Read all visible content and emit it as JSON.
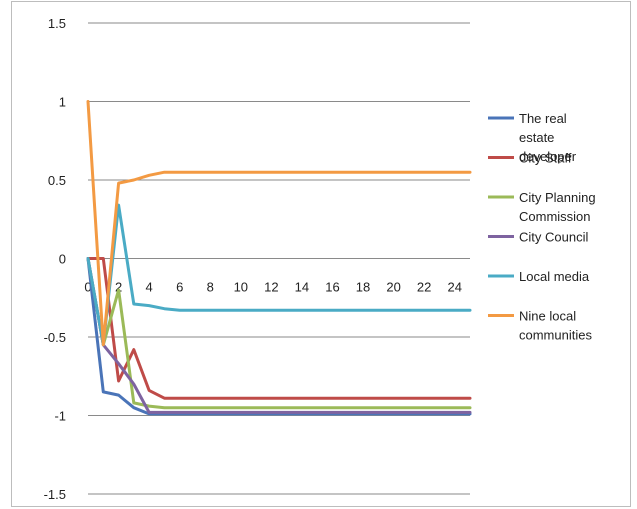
{
  "chart_data": {
    "type": "line",
    "x": [
      0,
      1,
      2,
      3,
      4,
      5,
      6,
      7,
      8,
      9,
      10,
      11,
      12,
      13,
      14,
      15,
      16,
      17,
      18,
      19,
      20,
      21,
      22,
      23,
      24,
      25
    ],
    "xlim": [
      0,
      25
    ],
    "ylim": [
      -1.5,
      1.5
    ],
    "xticks": [
      "0",
      "2",
      "4",
      "6",
      "8",
      "10",
      "12",
      "14",
      "16",
      "18",
      "20",
      "22",
      "24"
    ],
    "yticks": [
      "1.5",
      "1",
      "0.5",
      "0",
      "-0.5",
      "-1",
      "-1.5"
    ],
    "grid": true,
    "legend_position": "right",
    "series": [
      {
        "name": "The real estate developer",
        "color": "#4a74b8",
        "values": [
          0,
          -0.85,
          -0.87,
          -0.95,
          -0.99,
          -0.99,
          -0.99,
          -0.99,
          -0.99,
          -0.99,
          -0.99,
          -0.99,
          -0.99,
          -0.99,
          -0.99,
          -0.99,
          -0.99,
          -0.99,
          -0.99,
          -0.99,
          -0.99,
          -0.99,
          -0.99,
          -0.99,
          -0.99,
          -0.99
        ]
      },
      {
        "name": "City Staff",
        "color": "#bf4b48",
        "values": [
          0,
          0,
          -0.78,
          -0.58,
          -0.84,
          -0.89,
          -0.89,
          -0.89,
          -0.89,
          -0.89,
          -0.89,
          -0.89,
          -0.89,
          -0.89,
          -0.89,
          -0.89,
          -0.89,
          -0.89,
          -0.89,
          -0.89,
          -0.89,
          -0.89,
          -0.89,
          -0.89,
          -0.89,
          -0.89
        ]
      },
      {
        "name": "City Planning Commission",
        "color": "#9bba58",
        "values": [
          0,
          -0.55,
          -0.2,
          -0.92,
          -0.94,
          -0.95,
          -0.95,
          -0.95,
          -0.95,
          -0.95,
          -0.95,
          -0.95,
          -0.95,
          -0.95,
          -0.95,
          -0.95,
          -0.95,
          -0.95,
          -0.95,
          -0.95,
          -0.95,
          -0.95,
          -0.95,
          -0.95,
          -0.95,
          -0.95
        ]
      },
      {
        "name": "City Council",
        "color": "#7e63a0",
        "values": [
          0,
          -0.55,
          -0.67,
          -0.8,
          -0.98,
          -0.98,
          -0.98,
          -0.98,
          -0.98,
          -0.98,
          -0.98,
          -0.98,
          -0.98,
          -0.98,
          -0.98,
          -0.98,
          -0.98,
          -0.98,
          -0.98,
          -0.98,
          -0.98,
          -0.98,
          -0.98,
          -0.98,
          -0.98,
          -0.98
        ]
      },
      {
        "name": "Local media",
        "color": "#4aabc5",
        "values": [
          0,
          -0.55,
          0.34,
          -0.29,
          -0.3,
          -0.32,
          -0.33,
          -0.33,
          -0.33,
          -0.33,
          -0.33,
          -0.33,
          -0.33,
          -0.33,
          -0.33,
          -0.33,
          -0.33,
          -0.33,
          -0.33,
          -0.33,
          -0.33,
          -0.33,
          -0.33,
          -0.33,
          -0.33,
          -0.33
        ]
      },
      {
        "name": "Nine local communities",
        "color": "#f39a43",
        "values": [
          1,
          -0.55,
          0.48,
          0.5,
          0.53,
          0.55,
          0.55,
          0.55,
          0.55,
          0.55,
          0.55,
          0.55,
          0.55,
          0.55,
          0.55,
          0.55,
          0.55,
          0.55,
          0.55,
          0.55,
          0.55,
          0.55,
          0.55,
          0.55,
          0.55,
          0.55
        ]
      }
    ]
  }
}
